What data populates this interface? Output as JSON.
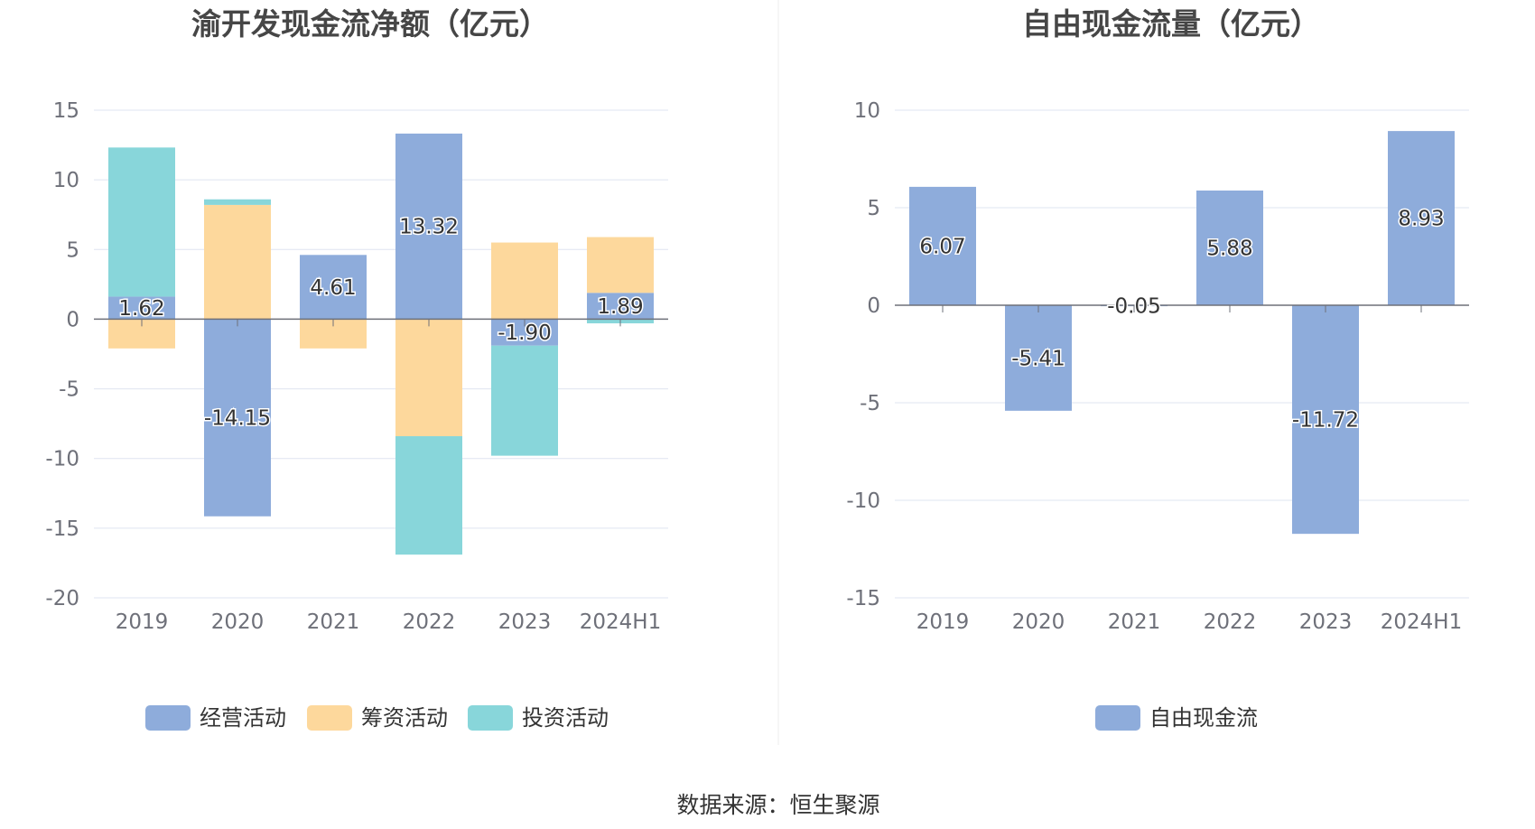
{
  "source_text": "数据来源：恒生聚源",
  "colors": {
    "operating": "#8eacdb",
    "financing": "#fdd89c",
    "investing": "#88d6da",
    "free_cf": "#8eacdb",
    "grid": "#dfe4f0",
    "axis": "#6e7079"
  },
  "chart_data": [
    {
      "type": "bar",
      "stacked": true,
      "title": "渝开发现金流净额（亿元）",
      "categories": [
        "2019",
        "2020",
        "2021",
        "2022",
        "2023",
        "2024H1"
      ],
      "ylim": [
        -20,
        15
      ],
      "yticks": [
        15,
        10,
        5,
        0,
        -5,
        -10,
        -15,
        -20
      ],
      "grid": true,
      "legend_position": "bottom",
      "series": [
        {
          "name": "经营活动",
          "values": [
            1.62,
            -14.15,
            4.61,
            13.32,
            -1.9,
            1.89
          ],
          "labels": [
            "1.62",
            "-14.15",
            "4.61",
            "13.32",
            "-1.90",
            "1.89"
          ]
        },
        {
          "name": "筹资活动",
          "values": [
            -2.1,
            8.2,
            -2.1,
            -8.4,
            5.5,
            4.0
          ]
        },
        {
          "name": "投资活动",
          "values": [
            10.7,
            0.4,
            0.0,
            -8.5,
            -7.9,
            -0.3
          ]
        }
      ]
    },
    {
      "type": "bar",
      "title": "自由现金流量（亿元）",
      "categories": [
        "2019",
        "2020",
        "2021",
        "2022",
        "2023",
        "2024H1"
      ],
      "ylim": [
        -15,
        10
      ],
      "yticks": [
        10,
        5,
        0,
        -5,
        -10,
        -15
      ],
      "grid": true,
      "legend_position": "bottom",
      "series": [
        {
          "name": "自由现金流",
          "values": [
            6.07,
            -5.41,
            -0.05,
            5.88,
            -11.72,
            8.93
          ],
          "labels": [
            "6.07",
            "-5.41",
            "-0.05",
            "5.88",
            "-11.72",
            "8.93"
          ]
        }
      ]
    }
  ]
}
